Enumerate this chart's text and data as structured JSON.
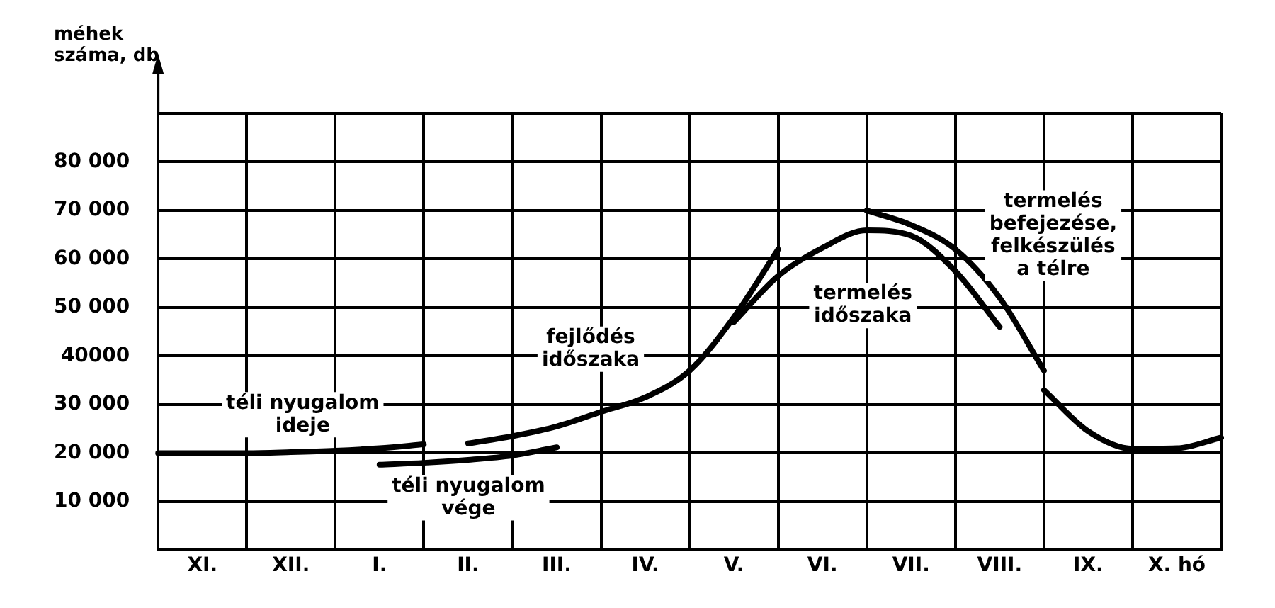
{
  "chart_data": {
    "type": "line",
    "ylabel": "méhek\nszáma, db",
    "categories": [
      null,
      "XI.",
      null,
      "XII.",
      null,
      "I.",
      null,
      "II.",
      null,
      "III.",
      null,
      "IV.",
      null,
      "V.",
      null,
      "VI.",
      null,
      "VII.",
      null,
      "VIII.",
      null,
      "IX.",
      null,
      "X. hó",
      null
    ],
    "ylim": [
      0,
      90000
    ],
    "yticks": [
      {
        "value": 0,
        "label": null
      },
      {
        "value": 10000,
        "label": "10 000"
      },
      {
        "value": 20000,
        "label": "20 000"
      },
      {
        "value": 30000,
        "label": "30 000"
      },
      {
        "value": 40000,
        "label": "40000"
      },
      {
        "value": 50000,
        "label": "50 000"
      },
      {
        "value": 60000,
        "label": "60 000"
      },
      {
        "value": 70000,
        "label": "70 000"
      },
      {
        "value": 80000,
        "label": "80 000"
      },
      {
        "value": 90000,
        "label": null
      }
    ],
    "grid": true,
    "legend": false,
    "marker": "none",
    "line_style": "solid",
    "series": [
      {
        "color": "#000000",
        "values": [
          20000,
          20000,
          20000,
          20200,
          20500,
          21000,
          21800,
          null,
          null,
          null,
          null,
          null,
          null,
          null,
          null,
          null,
          null,
          null,
          null,
          null,
          null,
          null,
          null,
          null,
          null
        ]
      },
      {
        "color": "#000000",
        "values": [
          null,
          null,
          null,
          null,
          null,
          17600,
          18000,
          18600,
          19500,
          21200,
          null,
          null,
          null,
          null,
          null,
          null,
          null,
          null,
          null,
          null,
          null,
          null,
          null,
          null,
          null
        ]
      },
      {
        "color": "#000000",
        "values": [
          null,
          null,
          null,
          null,
          null,
          null,
          null,
          22000,
          23500,
          25500,
          28500,
          31500,
          37000,
          48000,
          62000,
          null,
          null,
          null,
          null,
          null,
          null,
          null,
          null,
          null,
          null
        ]
      },
      {
        "color": "#000000",
        "values": [
          null,
          null,
          null,
          null,
          null,
          null,
          null,
          null,
          null,
          null,
          null,
          null,
          null,
          47000,
          56500,
          62300,
          65900,
          64800,
          57500,
          46000,
          null,
          null,
          null,
          null,
          null
        ]
      },
      {
        "color": "#000000",
        "values": [
          null,
          null,
          null,
          null,
          null,
          null,
          null,
          null,
          null,
          null,
          null,
          null,
          null,
          null,
          null,
          null,
          70000,
          67000,
          62000,
          52000,
          37000,
          null,
          null,
          null,
          null
        ]
      },
      {
        "color": "#000000",
        "values": [
          null,
          null,
          null,
          null,
          null,
          null,
          null,
          null,
          null,
          null,
          null,
          null,
          null,
          null,
          null,
          null,
          null,
          null,
          null,
          null,
          33000,
          24500,
          20900,
          21000,
          23200
        ]
      }
    ],
    "annotations": [
      "téli nyugalom\nideje",
      "téli nyugalom\nvége",
      "fejlődés\nidőszaka",
      "termelés\nidőszaka",
      "termelés\nbefejezése,\nfelkészülés\na télre"
    ]
  }
}
